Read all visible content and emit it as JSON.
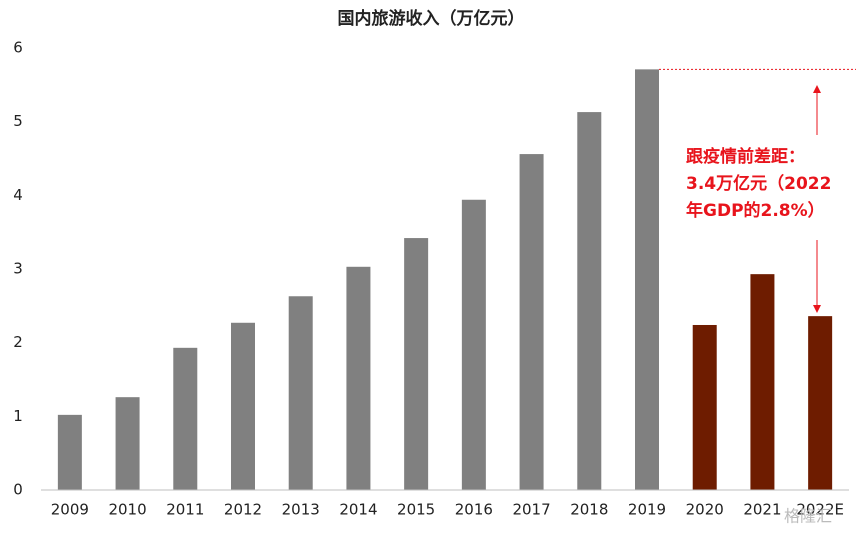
{
  "chart_data": {
    "type": "bar",
    "title": "国内旅游收入（万亿元）",
    "categories": [
      "2009",
      "2010",
      "2011",
      "2012",
      "2013",
      "2014",
      "2015",
      "2016",
      "2017",
      "2018",
      "2019",
      "2020",
      "2021",
      "2022E"
    ],
    "values": [
      1.02,
      1.26,
      1.93,
      2.27,
      2.63,
      3.03,
      3.42,
      3.94,
      4.56,
      5.13,
      5.71,
      2.24,
      2.93,
      2.36
    ],
    "colors": [
      "#808080",
      "#808080",
      "#808080",
      "#808080",
      "#808080",
      "#808080",
      "#808080",
      "#808080",
      "#808080",
      "#808080",
      "#808080",
      "#6e1c00",
      "#6e1c00",
      "#6e1c00"
    ],
    "ylim": [
      0,
      6
    ],
    "yticks": [
      0,
      1,
      2,
      3,
      4,
      5,
      6
    ],
    "grid": false,
    "annotation": [
      "跟疫情前差距：",
      "3.4万亿元（2022",
      "年GDP的2.8%）"
    ],
    "annotation_color": "#e8141c",
    "watermark": "格隆汇"
  }
}
